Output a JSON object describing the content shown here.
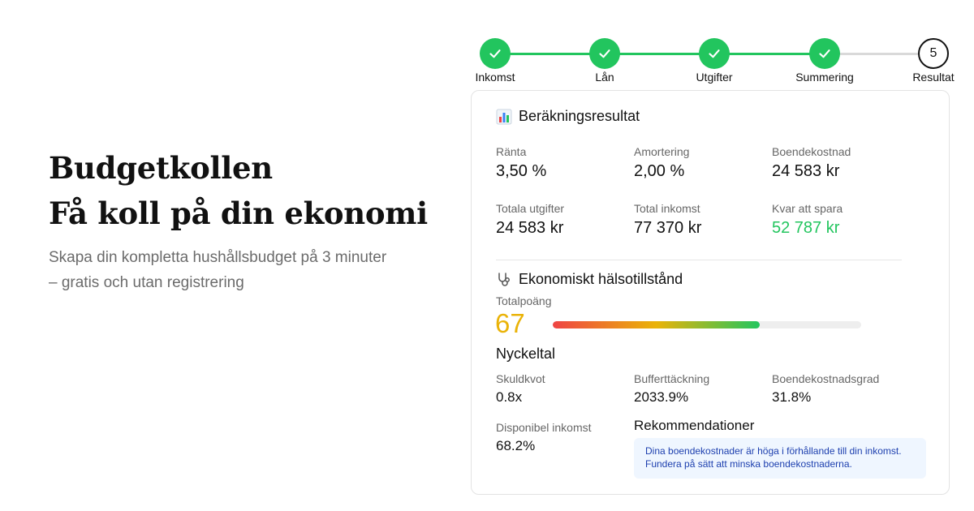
{
  "hero": {
    "title_line1": "Budgetkollen",
    "title_line2": "Få koll på din ekonomi",
    "subtitle_line1": "Skapa din kompletta hushållsbudget på 3 minuter",
    "subtitle_line2": "– gratis och utan registrering"
  },
  "stepper": {
    "steps": [
      {
        "label": "Inkomst",
        "state": "done"
      },
      {
        "label": "Lån",
        "state": "done"
      },
      {
        "label": "Utgifter",
        "state": "done"
      },
      {
        "label": "Summering",
        "state": "done"
      },
      {
        "label": "Resultat",
        "state": "current",
        "number": "5"
      }
    ]
  },
  "results": {
    "title": "Beräkningsresultat",
    "icon": "bar-chart-icon",
    "items": [
      {
        "label": "Ränta",
        "value": "3,50 %"
      },
      {
        "label": "Amortering",
        "value": "2,00 %"
      },
      {
        "label": "Boendekostnad",
        "value": "24 583 kr"
      },
      {
        "label": "Totala utgifter",
        "value": "24 583 kr"
      },
      {
        "label": "Total inkomst",
        "value": "77 370 kr"
      },
      {
        "label": "Kvar att spara",
        "value": "52 787 kr"
      }
    ]
  },
  "health": {
    "title": "Ekonomiskt hälsotillstånd",
    "icon": "stethoscope-icon",
    "score_label": "Totalpoäng",
    "score": "67",
    "score_fraction": 0.67,
    "key_figures_title": "Nyckeltal",
    "metrics": [
      {
        "label": "Skuldkvot",
        "value": "0.8x"
      },
      {
        "label": "Bufferttäckning",
        "value": "2033.9%"
      },
      {
        "label": "Boendekostnadsgrad",
        "value": "31.8%"
      },
      {
        "label": "Disponibel inkomst",
        "value": "68.2%"
      }
    ],
    "recommendations_title": "Rekommendationer",
    "recommendation_line1": "Dina boendekostnader är höga i förhållande till din inkomst.",
    "recommendation_line2": "Fundera på sätt att minska boendekostnaderna."
  },
  "colors": {
    "success": "#22c55e",
    "score": "#eab308",
    "info_bg": "#eff6ff",
    "info_text": "#1e40af"
  }
}
